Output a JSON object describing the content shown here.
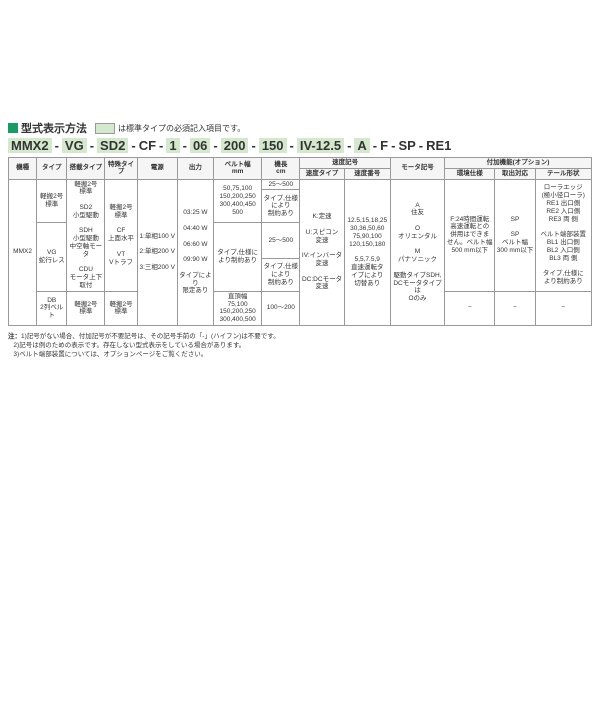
{
  "title": "型式表示方法",
  "title_note": "は標準タイプの必須記入項目です。",
  "code_segments": [
    "MMX2",
    "VG",
    "SD2",
    "CF",
    "1",
    "06",
    "200",
    "150",
    "IV-12.5",
    "A",
    "F",
    "SP",
    "RE1"
  ],
  "code_highlight": [
    true,
    true,
    true,
    false,
    true,
    true,
    true,
    true,
    true,
    true,
    false,
    false,
    false
  ],
  "headers": {
    "h0": "機種",
    "h1": "タイプ",
    "h2": "搭載タイプ",
    "h3": "特殊タイプ",
    "h4": "電源",
    "h5": "出力",
    "h6": "ベルト幅",
    "h6u": "mm",
    "h7": "機長",
    "h7u": "cm",
    "h8": "速度記号",
    "h8a": "速度タイプ",
    "h8b": "速度番号",
    "h9": "モータ記号",
    "h10": "付加機能(オプション)",
    "h10a": "環境仕様",
    "h10b": "取出対応",
    "h10c": "テール形状"
  },
  "cells": {
    "mmx2": "MMX2",
    "keiben2_std": "軽搬2号\n標準",
    "vg_jakou": "VG\n蛇行レス",
    "db_belt": "DB\n2列ベルト",
    "sd2": "軽搬2号\n標準\n\nSD2\n小型駆動\n\nSDH\n小型駆動\n中空軸モータ\n\nCDU\nモータ上下取付",
    "k2_std2": "軽搬2号\n標準",
    "cf_vt": "軽搬2号\n標準\n\nCF\n上面水平\n\nVT\nVトラフ",
    "k2_std3": "軽搬2号\n標準",
    "dengen": "1:単相100 V\n\n2:単相200 V\n\n3:三相200 V",
    "shutsu": "03:25 W\n\n04:40 W\n\n06:60 W\n\n09:90 W\n\nタイプにより\n限定あり",
    "belt_w1": "50,75,100\n150,200,250\n300,400,450\n500",
    "belt_w1b": "タイプ,仕様に\nより制約あり",
    "belt_w2": "直頂幅\n75,100\n150,200,250\n300,400,500",
    "kichou1": "25〜500",
    "kichou1b": "タイプ,仕様\nにより\n制約あり",
    "kichou2": "25〜500",
    "kichou2b": "タイプ,仕様\nにより\n制約あり",
    "kichou3": "100〜200",
    "sokudo_t": "K:定速\n\nU:スピコン\n変速\n\nIV:インバータ\n変速\n\nDC:DCモータ\n変速",
    "sokudo_n": "12.5,15,18,25\n30,36,50,60\n75,90,100\n120,150,180\n\n5,5,7.5,9\n直速運転タ\nイプにより\n切替あり",
    "motor": "A\n住友\n\nO\nオリエンタル\n\nM\nパナソニック\n\n駆動タイプSDH,\nDCモータタイプは\nOのみ",
    "env": "F:24時間運転\n高速運転との\n併用はできま\nせん。ベルト幅\n500 mm以下",
    "toridashi": "SP\n\nSP\nベルト幅\n300 mm以下",
    "tail": "ローラエッジ\n(極小径ローラ)\nRE1 出口側\nRE2 入口側\nRE3 両 側\n\nベルト端部装置\nBL1 出口側\nBL2 入口側\nBL3 両 側\n\nタイプ,仕様に\nより制約あり",
    "dash": "−"
  },
  "notes": {
    "label": "注：",
    "n1": "1)記号がない場合、付加記号が不要記号は、その記号手前の「-」(ハイフン)は不要です。",
    "n2": "2)記号は例のための表示です。存在しない型式表示をしている場合があります。",
    "n3": "3)ベルト端部装置については、オプションページをご覧ください。"
  },
  "colors": {
    "accent": "#1a9b66",
    "highlight": "#d4e8cd"
  }
}
